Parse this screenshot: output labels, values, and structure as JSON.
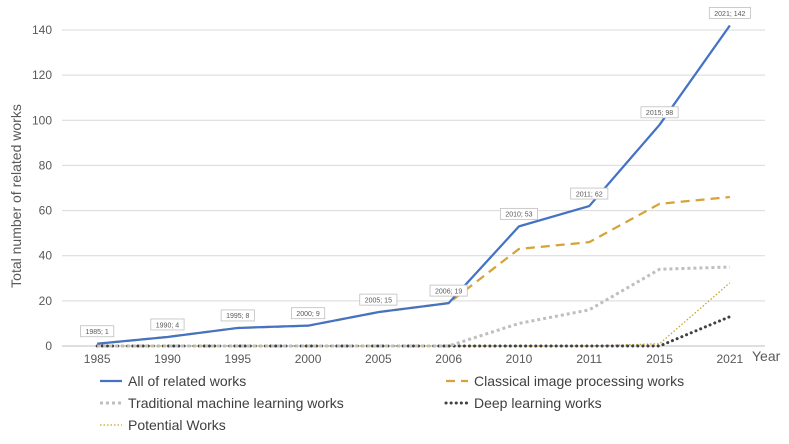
{
  "chart_data": {
    "type": "line",
    "categories": [
      "1985",
      "1990",
      "1995",
      "2000",
      "2005",
      "2006",
      "2010",
      "2011",
      "2015",
      "2021"
    ],
    "xlabel": "Year",
    "ylabel": "Total number of related works",
    "ylim": [
      0,
      140
    ],
    "yticks": [
      0,
      20,
      40,
      60,
      80,
      100,
      120,
      140
    ],
    "grid": true,
    "legend_position": "bottom",
    "series": [
      {
        "name": "All of related works",
        "color": "#4472C4",
        "style": "solid",
        "values": [
          1,
          4,
          8,
          9,
          15,
          19,
          53,
          62,
          98,
          142
        ]
      },
      {
        "name": "Classical image processing works",
        "color": "#D4A437",
        "style": "dashed",
        "values": [
          1,
          4,
          8,
          9,
          15,
          19,
          43,
          46,
          63,
          66
        ]
      },
      {
        "name": "Traditional machine learning works",
        "color": "#BFBFBF",
        "style": "dotted",
        "values": [
          0,
          0,
          0,
          0,
          0,
          0,
          10,
          16,
          34,
          35
        ]
      },
      {
        "name": "Deep learning works",
        "color": "#404040",
        "style": "roundDot",
        "values": [
          0,
          0,
          0,
          0,
          0,
          0,
          0,
          0,
          0,
          13
        ]
      },
      {
        "name": "Potential Works",
        "color": "#C9A227",
        "style": "thinDot",
        "values": [
          0,
          0,
          0,
          0,
          0,
          0,
          0,
          0,
          1,
          28
        ]
      }
    ],
    "data_labels": [
      "1985; 1",
      "1990; 4",
      "1995; 8",
      "2000; 9",
      "2005; 15",
      "2006; 19",
      "2010; 53",
      "2011; 62",
      "2015; 98",
      "2021; 142"
    ]
  }
}
